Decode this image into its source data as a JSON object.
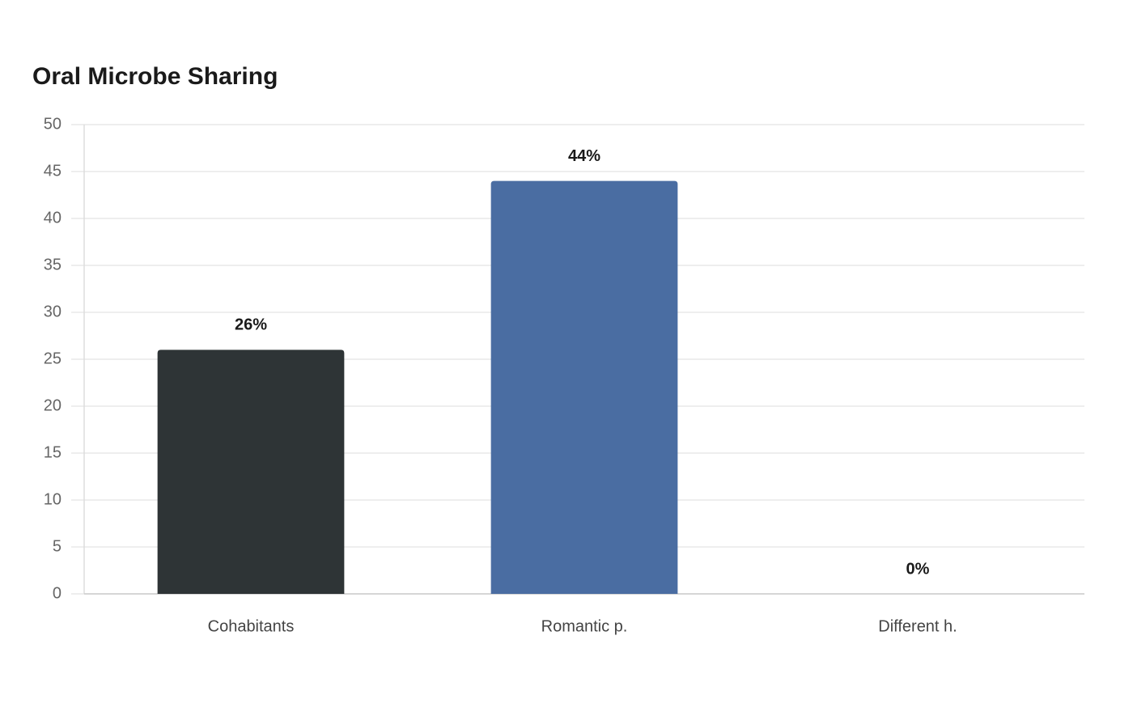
{
  "chart_data": {
    "type": "bar",
    "title": "Oral Microbe Sharing",
    "categories": [
      "Cohabitants",
      "Romantic p.",
      "Different h."
    ],
    "values": [
      26,
      44,
      0
    ],
    "value_labels": [
      "26%",
      "44%",
      "0%"
    ],
    "colors": [
      "#2e3436",
      "#4a6da2",
      "#4a6da2"
    ],
    "ylim": [
      0,
      50
    ],
    "yticks": [
      0,
      5,
      10,
      15,
      20,
      25,
      30,
      35,
      40,
      45,
      50
    ],
    "grid": true
  }
}
